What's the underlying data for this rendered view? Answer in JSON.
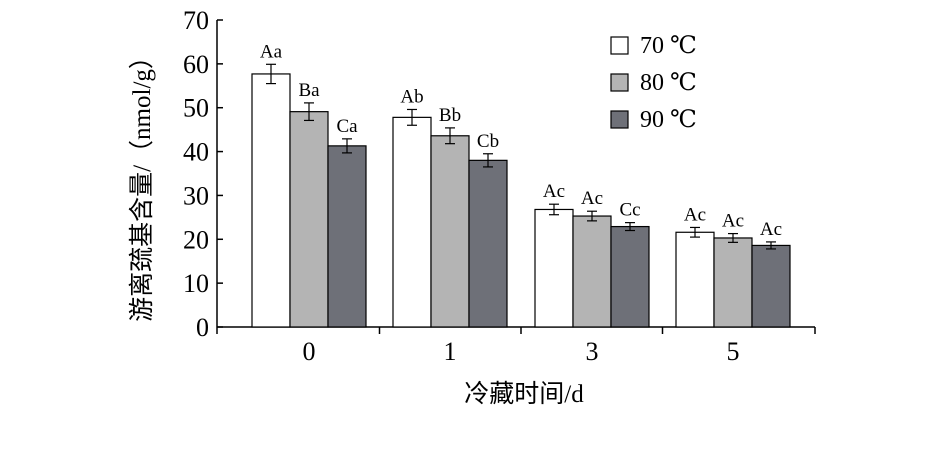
{
  "chart_data": {
    "type": "bar",
    "title": "",
    "xlabel": "冷藏时间/d",
    "ylabel": "游离巯基含量/（nmol/g）",
    "categories": [
      "0",
      "1",
      "3",
      "5"
    ],
    "ylim": [
      0,
      70
    ],
    "yticks": [
      0,
      10,
      20,
      30,
      40,
      50,
      60,
      70
    ],
    "grid": false,
    "legend_position": "top-right",
    "series": [
      {
        "name": "70 ℃",
        "color": "#ffffff",
        "values": [
          57.7,
          47.8,
          26.8,
          21.6
        ],
        "errors": [
          2.2,
          1.8,
          1.2,
          1.1
        ],
        "labels": [
          "Aa",
          "Ab",
          "Ac",
          "Ac"
        ]
      },
      {
        "name": "80 ℃",
        "color": "#b4b4b4",
        "values": [
          49.1,
          43.6,
          25.3,
          20.3
        ],
        "errors": [
          2.0,
          1.8,
          1.1,
          1.0
        ],
        "labels": [
          "Ba",
          "Bb",
          "Ac",
          "Ac"
        ]
      },
      {
        "name": "90 ℃",
        "color": "#6e7078",
        "values": [
          41.3,
          38.0,
          22.9,
          18.6
        ],
        "errors": [
          1.6,
          1.5,
          0.9,
          0.8
        ],
        "labels": [
          "Ca",
          "Cb",
          "Cc",
          "Ac"
        ]
      }
    ]
  }
}
